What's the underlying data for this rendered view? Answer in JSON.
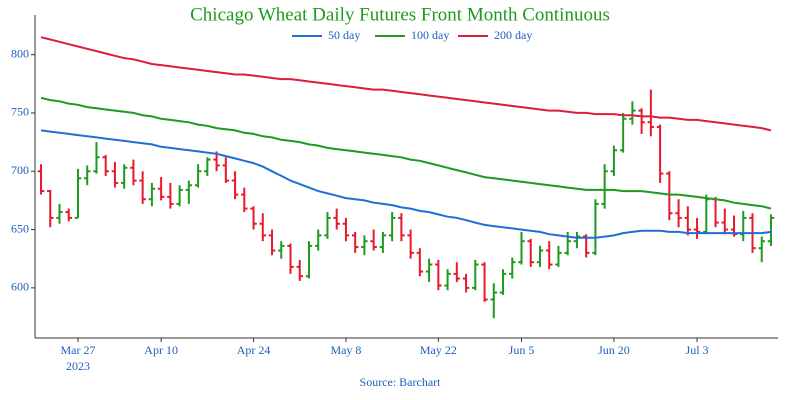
{
  "chart_data": {
    "type": "ohlc",
    "title": "Chicago Wheat Daily Futures Front Month Continuous",
    "source": "Source: Barchart",
    "year_label": "2023",
    "categories": [
      null,
      null,
      null,
      null,
      "Mar 27",
      null,
      null,
      null,
      null,
      null,
      null,
      null,
      null,
      "Apr 10",
      null,
      null,
      null,
      null,
      null,
      null,
      null,
      null,
      null,
      "Apr 24",
      null,
      null,
      null,
      null,
      null,
      null,
      null,
      null,
      null,
      "May 8",
      null,
      null,
      null,
      null,
      null,
      null,
      null,
      null,
      null,
      "May 22",
      null,
      null,
      null,
      null,
      null,
      null,
      null,
      null,
      "Jun 5",
      null,
      null,
      null,
      null,
      null,
      null,
      null,
      null,
      null,
      "Jun 20",
      null,
      null,
      null,
      null,
      null,
      null,
      null,
      null,
      "Jul 3",
      null,
      null,
      null,
      null,
      null,
      null,
      null,
      null
    ],
    "open": [
      700,
      683,
      660,
      665,
      660,
      694,
      700,
      712,
      700,
      690,
      703,
      692,
      676,
      685,
      678,
      672,
      684,
      688,
      700,
      710,
      705,
      692,
      680,
      668,
      655,
      645,
      632,
      636,
      618,
      610,
      636,
      645,
      660,
      655,
      645,
      635,
      640,
      635,
      645,
      660,
      645,
      630,
      614,
      620,
      602,
      612,
      608,
      600,
      620,
      590,
      596,
      612,
      622,
      640,
      622,
      632,
      620,
      630,
      640,
      644,
      630,
      672,
      700,
      718,
      745,
      752,
      742,
      738,
      698,
      664,
      660,
      650,
      648,
      676,
      656,
      650,
      646,
      660,
      634,
      640
    ],
    "high": [
      706,
      684,
      672,
      668,
      702,
      705,
      725,
      714,
      708,
      706,
      710,
      700,
      690,
      695,
      690,
      688,
      692,
      706,
      712,
      717,
      712,
      700,
      686,
      670,
      664,
      650,
      640,
      638,
      624,
      640,
      650,
      665,
      668,
      660,
      648,
      645,
      650,
      648,
      665,
      664,
      650,
      634,
      625,
      624,
      616,
      622,
      612,
      624,
      622,
      604,
      616,
      626,
      648,
      642,
      636,
      640,
      636,
      648,
      648,
      646,
      676,
      706,
      722,
      750,
      760,
      754,
      770,
      740,
      700,
      676,
      670,
      660,
      680,
      678,
      668,
      662,
      666,
      664,
      644,
      663
    ],
    "low": [
      680,
      652,
      655,
      657,
      660,
      688,
      698,
      696,
      686,
      685,
      688,
      672,
      670,
      675,
      668,
      670,
      672,
      686,
      696,
      700,
      690,
      676,
      665,
      650,
      640,
      628,
      625,
      612,
      606,
      608,
      632,
      642,
      650,
      640,
      630,
      628,
      632,
      630,
      640,
      640,
      625,
      610,
      605,
      598,
      598,
      605,
      596,
      598,
      588,
      574,
      594,
      608,
      620,
      618,
      618,
      616,
      618,
      628,
      634,
      626,
      628,
      668,
      696,
      716,
      740,
      732,
      730,
      690,
      658,
      652,
      645,
      642,
      646,
      652,
      646,
      644,
      640,
      630,
      622,
      636
    ],
    "close": [
      683,
      660,
      665,
      660,
      694,
      700,
      712,
      700,
      690,
      703,
      692,
      676,
      685,
      678,
      672,
      684,
      688,
      700,
      710,
      705,
      692,
      680,
      668,
      655,
      645,
      632,
      636,
      618,
      610,
      636,
      645,
      660,
      655,
      645,
      635,
      640,
      635,
      645,
      660,
      645,
      630,
      614,
      620,
      602,
      612,
      608,
      600,
      620,
      590,
      596,
      612,
      622,
      640,
      622,
      632,
      620,
      630,
      640,
      644,
      630,
      672,
      700,
      718,
      745,
      752,
      742,
      738,
      698,
      664,
      660,
      650,
      648,
      676,
      656,
      650,
      646,
      660,
      634,
      640,
      660
    ],
    "up_color": "#1e9a1e",
    "down_color": "#e8192c",
    "series": [
      {
        "name": "50 day",
        "color": "#1f6fd8",
        "values": [
          735,
          734,
          733,
          732,
          731,
          730,
          729,
          728,
          727,
          726,
          725,
          724,
          723,
          721,
          720,
          719,
          718,
          717,
          716,
          715,
          713,
          711,
          709,
          707,
          704,
          700,
          696,
          692,
          689,
          686,
          683,
          681,
          679,
          677,
          676,
          675,
          673,
          672,
          671,
          669,
          668,
          666,
          665,
          663,
          661,
          660,
          658,
          656,
          654,
          653,
          652,
          651,
          650,
          649,
          648,
          646,
          645,
          644,
          643,
          643,
          643,
          644,
          645,
          647,
          648,
          649,
          649,
          649,
          648,
          648,
          647,
          647,
          647,
          647,
          647,
          647,
          647,
          647,
          647,
          648
        ]
      },
      {
        "name": "100 day",
        "color": "#1e9a1e",
        "values": [
          763,
          761,
          760,
          758,
          757,
          755,
          754,
          753,
          752,
          751,
          750,
          748,
          747,
          745,
          744,
          743,
          742,
          740,
          739,
          737,
          736,
          735,
          733,
          732,
          730,
          729,
          727,
          726,
          725,
          723,
          722,
          720,
          719,
          718,
          717,
          716,
          715,
          714,
          713,
          712,
          710,
          709,
          707,
          705,
          703,
          701,
          699,
          697,
          695,
          694,
          693,
          692,
          691,
          690,
          689,
          688,
          687,
          686,
          685,
          684,
          684,
          684,
          684,
          683,
          683,
          683,
          682,
          681,
          680,
          680,
          679,
          678,
          677,
          676,
          675,
          673,
          672,
          671,
          670,
          668
        ]
      },
      {
        "name": "200 day",
        "color": "#dc1e3c",
        "values": [
          815,
          813,
          811,
          809,
          807,
          805,
          803,
          801,
          799,
          797,
          796,
          794,
          792,
          791,
          790,
          789,
          788,
          787,
          786,
          785,
          784,
          783,
          783,
          782,
          781,
          780,
          779,
          779,
          778,
          777,
          776,
          775,
          774,
          773,
          772,
          771,
          770,
          770,
          769,
          768,
          767,
          766,
          765,
          764,
          763,
          762,
          761,
          760,
          759,
          758,
          757,
          756,
          755,
          754,
          753,
          752,
          752,
          751,
          750,
          750,
          749,
          749,
          749,
          748,
          748,
          747,
          747,
          746,
          746,
          745,
          744,
          744,
          743,
          742,
          741,
          740,
          739,
          738,
          737,
          735
        ]
      }
    ],
    "ylim": [
      557,
      834
    ],
    "yticks": [
      600,
      650,
      700,
      750,
      800
    ]
  }
}
